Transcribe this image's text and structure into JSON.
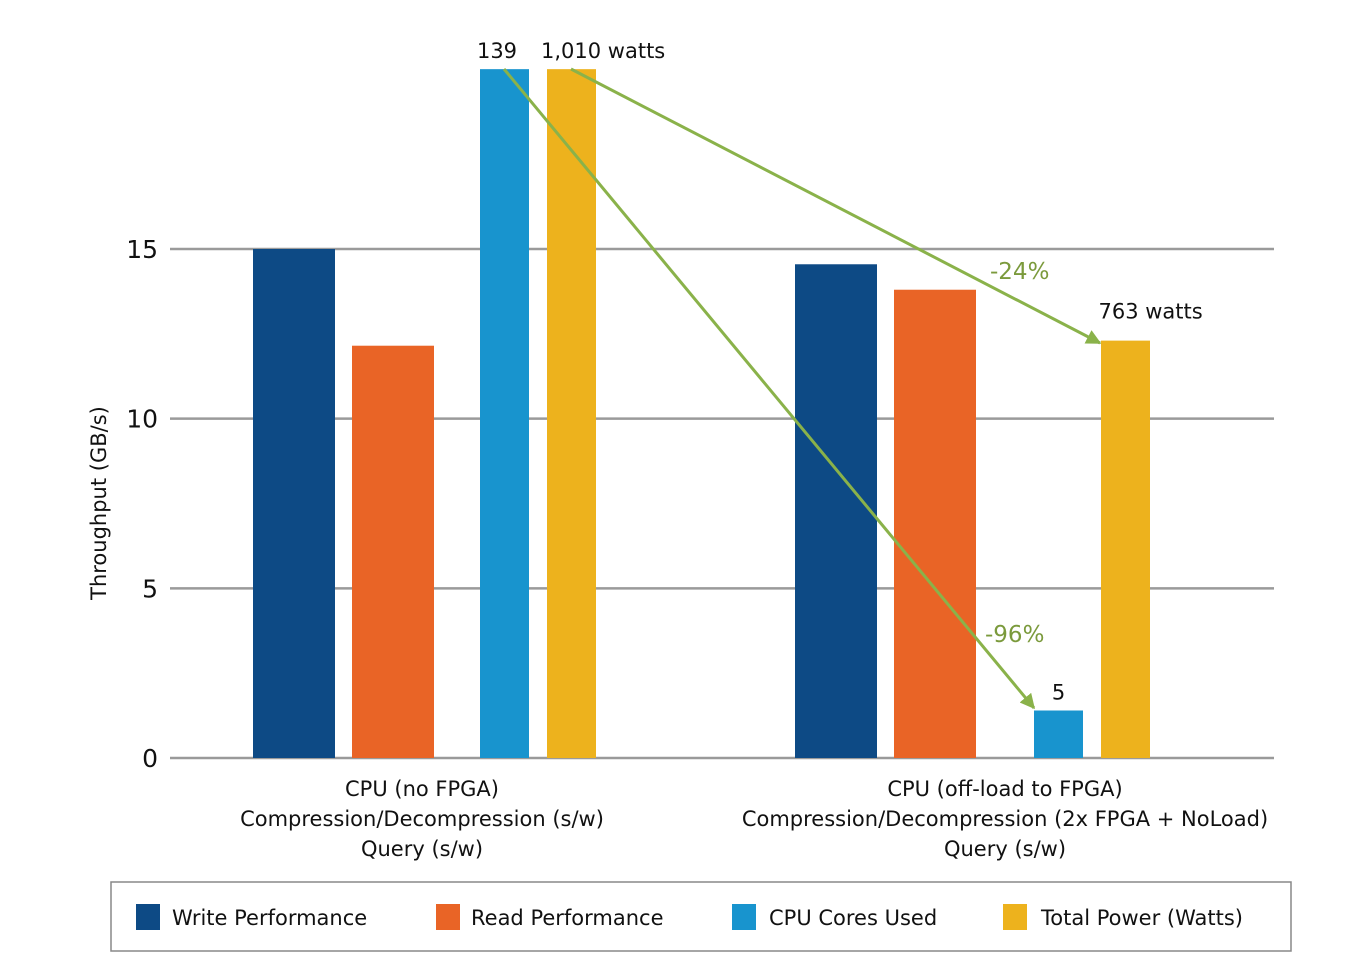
{
  "chart_data": {
    "type": "bar",
    "title": "",
    "xlabel": "",
    "ylabel": "Throughput (GB/s)",
    "ylim": [
      0,
      20.3
    ],
    "yticks": [
      0,
      5,
      10,
      15
    ],
    "grid": true,
    "clipped_at_top": true,
    "categories": [
      [
        "CPU (no FPGA)",
        "Compression/Decompression (s/w)",
        "Query (s/w)"
      ],
      [
        "CPU (off-load to FPGA)",
        "Compression/Decompression (2x FPGA + NoLoad)",
        "Query (s/w)"
      ]
    ],
    "series": [
      {
        "name": "Write Performance",
        "color": "#0d4a85",
        "values": [
          15.0,
          14.55
        ]
      },
      {
        "name": "Read Performance",
        "color": "#e96426",
        "values": [
          12.15,
          13.8
        ]
      },
      {
        "name": "CPU Cores Used",
        "color": "#1894ce",
        "values": [
          20.3,
          1.4
        ],
        "data_labels": [
          "139",
          "5"
        ]
      },
      {
        "name": "Total Power (Watts)",
        "color": "#edb21d",
        "values": [
          20.3,
          12.3
        ],
        "data_labels": [
          "1,010 watts",
          "763 watts"
        ]
      }
    ],
    "annotations": [
      {
        "text": "-96%",
        "from_series": "CPU Cores Used",
        "from_category": 0,
        "to_category": 1,
        "color": "#8ab24a"
      },
      {
        "text": "-24%",
        "from_series": "Total Power (Watts)",
        "from_category": 0,
        "to_category": 1,
        "color": "#8ab24a"
      }
    ],
    "legend": {
      "placement": "bottom",
      "items": [
        "Write Performance",
        "Read Performance",
        "CPU Cores Used",
        "Total Power (Watts)"
      ]
    }
  }
}
